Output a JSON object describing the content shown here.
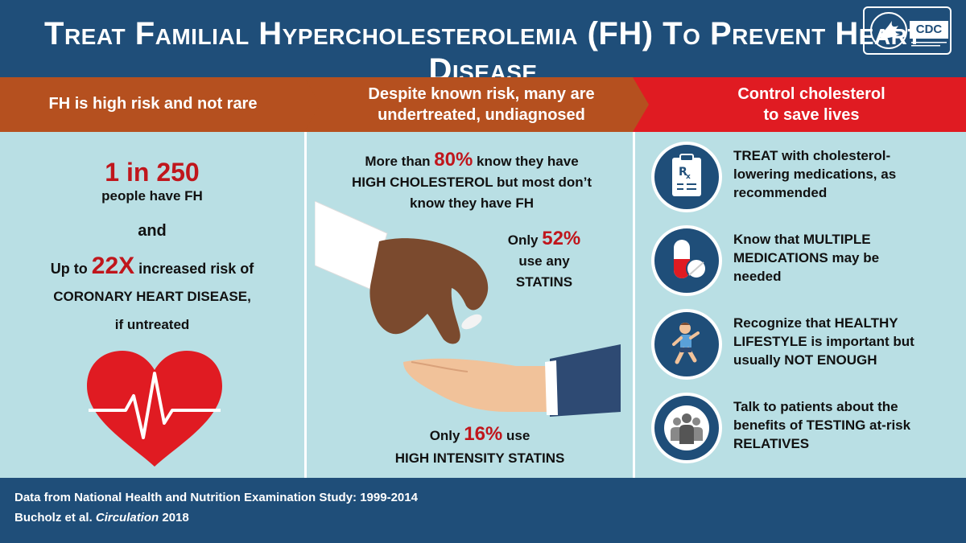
{
  "title": "Treat Familial Hypercholesterolemia (FH) To Prevent Heart Disease",
  "columns": {
    "col1": {
      "header": "FH is high risk and not rare",
      "stat1": "1 in 250",
      "line2": "people have FH",
      "and": "and",
      "line4_pre": "Up to ",
      "line4_stat": "22X",
      "line4_post": " increased risk of",
      "line5": "CORONARY HEART DISEASE,",
      "line6": "if untreated"
    },
    "col2": {
      "header_line1": "Despite known risk, many are",
      "header_line2": "undertreated, undiagnosed",
      "p1_pre": "More than ",
      "p1_stat": "80%",
      "p1_post": " know they have",
      "p1_line2": "HIGH CHOLESTEROL but most don’t",
      "p1_line3": "know they have FH",
      "p2_pre": "Only ",
      "p2_stat": "52%",
      "p2_line2": "use any",
      "p2_line3": "STATINS",
      "p3_pre": "Only ",
      "p3_stat": "16%",
      "p3_post": " use",
      "p3_line2": "HIGH INTENSITY STATINS"
    },
    "col3": {
      "header_line1": "Control cholesterol",
      "header_line2": "to save lives",
      "items": [
        {
          "icon": "prescription-icon",
          "l1": "TREAT with cholesterol-",
          "l2": "lowering medications, as",
          "l3": "recommended"
        },
        {
          "icon": "pill-icon",
          "l1": "Know that MULTIPLE",
          "l2": "MEDICATIONS may be",
          "l3": "needed"
        },
        {
          "icon": "runner-icon",
          "l1": "Recognize that HEALTHY",
          "l2": "LIFESTYLE is important but",
          "l3": "usually NOT ENOUGH"
        },
        {
          "icon": "family-icon",
          "l1": "Talk to patients about the",
          "l2": "benefits of TESTING at-risk",
          "l3": "RELATIVES"
        }
      ]
    }
  },
  "footer": {
    "line1": "Data from National Health and Nutrition Examination Study: 1999-2014",
    "line2_pre": "Bucholz et al. ",
    "line2_italic": "Circulation",
    "line2_post": " 2018",
    "logo": "CDC"
  },
  "colors": {
    "navy": "#1f4e79",
    "orange": "#b5501f",
    "red": "#e01b22",
    "stat_red": "#c0161c",
    "panel": "#b9dfe4"
  }
}
